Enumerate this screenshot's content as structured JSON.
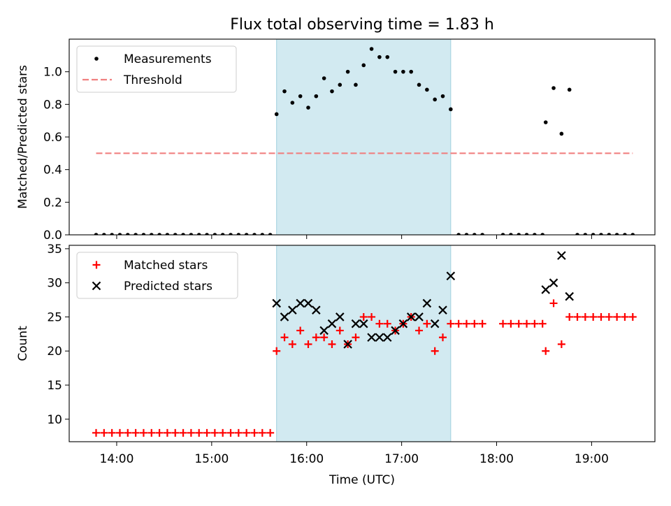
{
  "chart_data": {
    "title": "Flux total observing time = 1.83 h",
    "shaded_region": {
      "from": "15:41",
      "to": "17:31",
      "color": "#add8e6"
    },
    "x_axis": {
      "label": "Time (UTC)",
      "range": [
        "13:30",
        "19:40"
      ],
      "ticks": [
        "14:00",
        "15:00",
        "16:00",
        "17:00",
        "18:00",
        "19:00"
      ]
    },
    "panels": [
      {
        "type": "scatter",
        "ylabel": "Matched/Predicted stars",
        "ylim": [
          0,
          1.2
        ],
        "yticks": [
          "0.0",
          "0.2",
          "0.4",
          "0.6",
          "0.8",
          "1.0"
        ],
        "legend_position": "top-left",
        "series": [
          {
            "name": "Measurements",
            "marker": "dot",
            "color": "#000000",
            "points": [
              [
                "13:47",
                0
              ],
              [
                "13:52",
                0
              ],
              [
                "13:57",
                0
              ],
              [
                "14:02",
                0
              ],
              [
                "14:07",
                0
              ],
              [
                "14:12",
                0
              ],
              [
                "14:17",
                0
              ],
              [
                "14:22",
                0
              ],
              [
                "14:27",
                0
              ],
              [
                "14:32",
                0
              ],
              [
                "14:37",
                0
              ],
              [
                "14:42",
                0
              ],
              [
                "14:47",
                0
              ],
              [
                "14:52",
                0
              ],
              [
                "14:57",
                0
              ],
              [
                "15:02",
                0
              ],
              [
                "15:07",
                0
              ],
              [
                "15:12",
                0
              ],
              [
                "15:17",
                0
              ],
              [
                "15:22",
                0
              ],
              [
                "15:27",
                0
              ],
              [
                "15:32",
                0
              ],
              [
                "15:37",
                0
              ],
              [
                "15:41",
                0.74
              ],
              [
                "15:46",
                0.88
              ],
              [
                "15:51",
                0.81
              ],
              [
                "15:56",
                0.85
              ],
              [
                "16:01",
                0.78
              ],
              [
                "16:06",
                0.85
              ],
              [
                "16:11",
                0.96
              ],
              [
                "16:16",
                0.88
              ],
              [
                "16:21",
                0.92
              ],
              [
                "16:26",
                1.0
              ],
              [
                "16:31",
                0.92
              ],
              [
                "16:36",
                1.04
              ],
              [
                "16:41",
                1.14
              ],
              [
                "16:46",
                1.09
              ],
              [
                "16:51",
                1.09
              ],
              [
                "16:56",
                1.0
              ],
              [
                "17:01",
                1.0
              ],
              [
                "17:06",
                1.0
              ],
              [
                "17:11",
                0.92
              ],
              [
                "17:16",
                0.89
              ],
              [
                "17:21",
                0.83
              ],
              [
                "17:26",
                0.85
              ],
              [
                "17:31",
                0.77
              ],
              [
                "17:36",
                0
              ],
              [
                "17:41",
                0
              ],
              [
                "17:46",
                0
              ],
              [
                "17:51",
                0
              ],
              [
                "18:04",
                0
              ],
              [
                "18:09",
                0
              ],
              [
                "18:14",
                0
              ],
              [
                "18:19",
                0
              ],
              [
                "18:24",
                0
              ],
              [
                "18:29",
                0
              ],
              [
                "18:31",
                0.69
              ],
              [
                "18:36",
                0.9
              ],
              [
                "18:41",
                0.62
              ],
              [
                "18:46",
                0.89
              ],
              [
                "18:51",
                0
              ],
              [
                "18:56",
                0
              ],
              [
                "19:01",
                0
              ],
              [
                "19:06",
                0
              ],
              [
                "19:11",
                0
              ],
              [
                "19:16",
                0
              ],
              [
                "19:21",
                0
              ],
              [
                "19:26",
                0
              ]
            ]
          },
          {
            "name": "Threshold",
            "marker": "dashed-line",
            "color": "#f08080",
            "points": [
              [
                "13:47",
                0.5
              ],
              [
                "19:26",
                0.5
              ]
            ]
          }
        ]
      },
      {
        "type": "scatter",
        "ylabel": "Count",
        "ylim": [
          6.7,
          35.5
        ],
        "yticks": [
          "10",
          "15",
          "20",
          "25",
          "30",
          "35"
        ],
        "legend_position": "top-left",
        "series": [
          {
            "name": "Matched stars",
            "marker": "plus",
            "color": "#ff0000",
            "points": [
              [
                "13:47",
                8
              ],
              [
                "13:52",
                8
              ],
              [
                "13:57",
                8
              ],
              [
                "14:02",
                8
              ],
              [
                "14:07",
                8
              ],
              [
                "14:12",
                8
              ],
              [
                "14:17",
                8
              ],
              [
                "14:22",
                8
              ],
              [
                "14:27",
                8
              ],
              [
                "14:32",
                8
              ],
              [
                "14:37",
                8
              ],
              [
                "14:42",
                8
              ],
              [
                "14:47",
                8
              ],
              [
                "14:52",
                8
              ],
              [
                "14:57",
                8
              ],
              [
                "15:02",
                8
              ],
              [
                "15:07",
                8
              ],
              [
                "15:12",
                8
              ],
              [
                "15:17",
                8
              ],
              [
                "15:22",
                8
              ],
              [
                "15:27",
                8
              ],
              [
                "15:32",
                8
              ],
              [
                "15:37",
                8
              ],
              [
                "15:41",
                20
              ],
              [
                "15:46",
                22
              ],
              [
                "15:51",
                21
              ],
              [
                "15:56",
                23
              ],
              [
                "16:01",
                21
              ],
              [
                "16:06",
                22
              ],
              [
                "16:11",
                22
              ],
              [
                "16:16",
                21
              ],
              [
                "16:21",
                23
              ],
              [
                "16:26",
                21
              ],
              [
                "16:31",
                22
              ],
              [
                "16:36",
                25
              ],
              [
                "16:41",
                25
              ],
              [
                "16:46",
                24
              ],
              [
                "16:51",
                24
              ],
              [
                "16:56",
                23
              ],
              [
                "17:01",
                24
              ],
              [
                "17:06",
                25
              ],
              [
                "17:11",
                23
              ],
              [
                "17:16",
                24
              ],
              [
                "17:21",
                20
              ],
              [
                "17:26",
                22
              ],
              [
                "17:31",
                24
              ],
              [
                "17:36",
                24
              ],
              [
                "17:41",
                24
              ],
              [
                "17:46",
                24
              ],
              [
                "17:51",
                24
              ],
              [
                "18:04",
                24
              ],
              [
                "18:09",
                24
              ],
              [
                "18:14",
                24
              ],
              [
                "18:19",
                24
              ],
              [
                "18:24",
                24
              ],
              [
                "18:29",
                24
              ],
              [
                "18:31",
                20
              ],
              [
                "18:36",
                27
              ],
              [
                "18:41",
                21
              ],
              [
                "18:46",
                25
              ],
              [
                "18:51",
                25
              ],
              [
                "18:56",
                25
              ],
              [
                "19:01",
                25
              ],
              [
                "19:06",
                25
              ],
              [
                "19:11",
                25
              ],
              [
                "19:16",
                25
              ],
              [
                "19:21",
                25
              ],
              [
                "19:26",
                25
              ]
            ]
          },
          {
            "name": "Predicted stars",
            "marker": "x",
            "color": "#000000",
            "points": [
              [
                "15:41",
                27
              ],
              [
                "15:46",
                25
              ],
              [
                "15:51",
                26
              ],
              [
                "15:56",
                27
              ],
              [
                "16:01",
                27
              ],
              [
                "16:06",
                26
              ],
              [
                "16:11",
                23
              ],
              [
                "16:16",
                24
              ],
              [
                "16:21",
                25
              ],
              [
                "16:26",
                21
              ],
              [
                "16:31",
                24
              ],
              [
                "16:36",
                24
              ],
              [
                "16:41",
                22
              ],
              [
                "16:46",
                22
              ],
              [
                "16:51",
                22
              ],
              [
                "16:56",
                23
              ],
              [
                "17:01",
                24
              ],
              [
                "17:06",
                25
              ],
              [
                "17:11",
                25
              ],
              [
                "17:16",
                27
              ],
              [
                "17:21",
                24
              ],
              [
                "17:26",
                26
              ],
              [
                "17:31",
                31
              ],
              [
                "18:31",
                29
              ],
              [
                "18:36",
                30
              ],
              [
                "18:41",
                34
              ],
              [
                "18:46",
                28
              ]
            ]
          }
        ]
      }
    ]
  }
}
